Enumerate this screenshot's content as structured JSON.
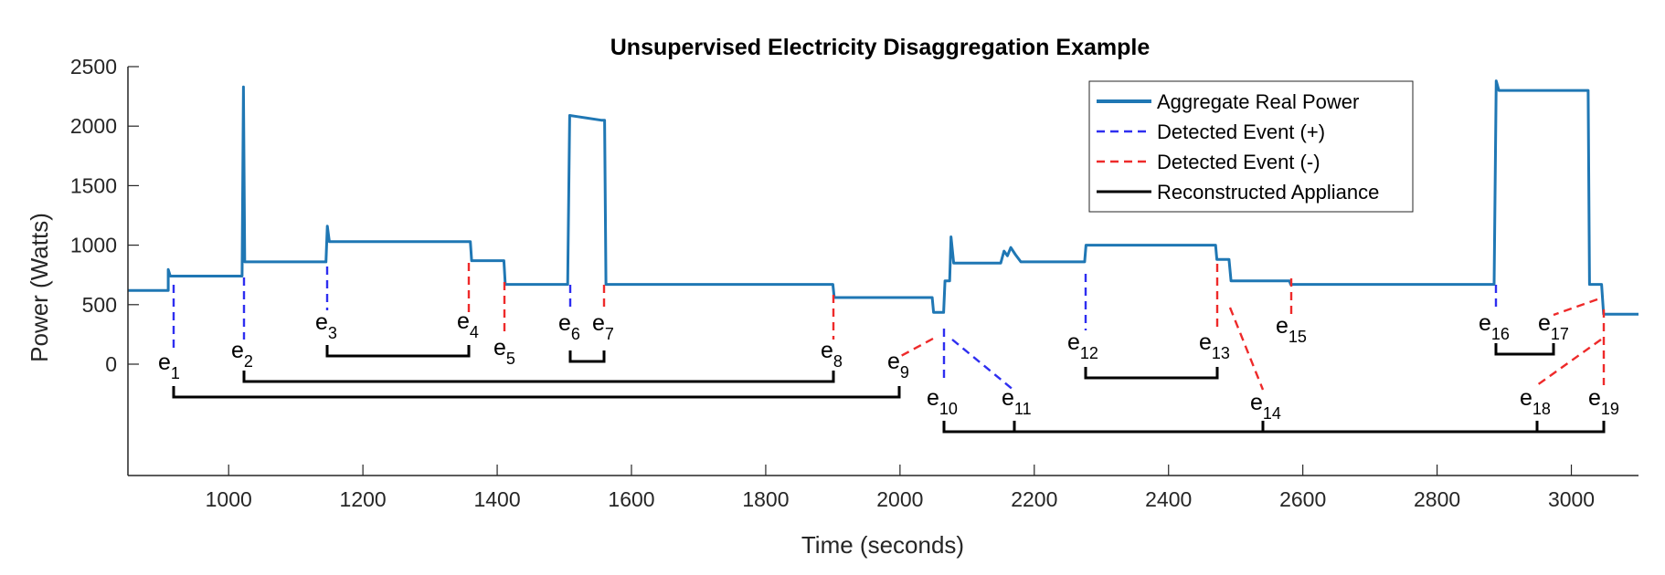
{
  "chart_data": {
    "type": "line",
    "title": "Unsupervised Electricity Disaggregation Example",
    "xlabel": "Time (seconds)",
    "ylabel": "Power (Watts)",
    "xlim": [
      850,
      3100
    ],
    "ylim": [
      -1000,
      2500
    ],
    "xticks": [
      1000,
      1200,
      1400,
      1600,
      1800,
      2000,
      2200,
      2400,
      2600,
      2800,
      3000
    ],
    "yticks": [
      0,
      500,
      1000,
      1500,
      2000,
      2500
    ],
    "grid": false,
    "legend_position": "top-right",
    "colors": {
      "aggregate": "#1f77b4",
      "event_plus": "#2e2ef0",
      "event_minus": "#ee2a2a",
      "appliance": "#000000",
      "axis": "#262626"
    },
    "legend": [
      {
        "label": "Aggregate Real Power",
        "style": "aggregate"
      },
      {
        "label": "Detected Event (+)",
        "style": "event_plus"
      },
      {
        "label": "Detected Event (-)",
        "style": "event_minus"
      },
      {
        "label": "Reconstructed Appliance",
        "style": "appliance"
      }
    ],
    "aggregate_power": {
      "name": "Aggregate Real Power",
      "points": [
        [
          850,
          620
        ],
        [
          910,
          620
        ],
        [
          910,
          795
        ],
        [
          913,
          740
        ],
        [
          1020,
          740
        ],
        [
          1022,
          2330
        ],
        [
          1024,
          860
        ],
        [
          1145,
          860
        ],
        [
          1147,
          1160
        ],
        [
          1150,
          1030
        ],
        [
          1360,
          1030
        ],
        [
          1362,
          870
        ],
        [
          1410,
          870
        ],
        [
          1412,
          670
        ],
        [
          1505,
          670
        ],
        [
          1508,
          2090
        ],
        [
          1520,
          2080
        ],
        [
          1555,
          2050
        ],
        [
          1560,
          2050
        ],
        [
          1562,
          670
        ],
        [
          1900,
          670
        ],
        [
          1902,
          560
        ],
        [
          2048,
          560
        ],
        [
          2050,
          435
        ],
        [
          2065,
          435
        ],
        [
          2067,
          700
        ],
        [
          2074,
          700
        ],
        [
          2076,
          1070
        ],
        [
          2080,
          850
        ],
        [
          2150,
          850
        ],
        [
          2155,
          950
        ],
        [
          2160,
          910
        ],
        [
          2165,
          980
        ],
        [
          2172,
          920
        ],
        [
          2180,
          860
        ],
        [
          2275,
          860
        ],
        [
          2277,
          1000
        ],
        [
          2470,
          1000
        ],
        [
          2472,
          880
        ],
        [
          2490,
          880
        ],
        [
          2493,
          700
        ],
        [
          2580,
          700
        ],
        [
          2582,
          670
        ],
        [
          2885,
          670
        ],
        [
          2888,
          2380
        ],
        [
          2892,
          2300
        ],
        [
          3025,
          2300
        ],
        [
          3027,
          670
        ],
        [
          3045,
          670
        ],
        [
          3048,
          420
        ],
        [
          3100,
          420
        ]
      ]
    },
    "events": [
      {
        "sym": "e",
        "sub": "1",
        "time": 910,
        "sign": "+"
      },
      {
        "sym": "e",
        "sub": "2",
        "time": 1022,
        "sign": "+"
      },
      {
        "sym": "e",
        "sub": "3",
        "time": 1147,
        "sign": "+"
      },
      {
        "sym": "e",
        "sub": "4",
        "time": 1360,
        "sign": "-"
      },
      {
        "sym": "e",
        "sub": "5",
        "time": 1412,
        "sign": "-"
      },
      {
        "sym": "e",
        "sub": "6",
        "time": 1507,
        "sign": "+"
      },
      {
        "sym": "e",
        "sub": "7",
        "time": 1561,
        "sign": "-"
      },
      {
        "sym": "e",
        "sub": "8",
        "time": 1900,
        "sign": "-"
      },
      {
        "sym": "e",
        "sub": "9",
        "time": 2050,
        "sign": "-"
      },
      {
        "sym": "e",
        "sub": "10",
        "time": 2067,
        "sign": "+"
      },
      {
        "sym": "e",
        "sub": "11",
        "time": 2076,
        "sign": "+"
      },
      {
        "sym": "e",
        "sub": "12",
        "time": 2277,
        "sign": "+"
      },
      {
        "sym": "e",
        "sub": "13",
        "time": 2472,
        "sign": "-"
      },
      {
        "sym": "e",
        "sub": "14",
        "time": 2493,
        "sign": "-"
      },
      {
        "sym": "e",
        "sub": "15",
        "time": 2582,
        "sign": "-"
      },
      {
        "sym": "e",
        "sub": "16",
        "time": 2888,
        "sign": "+"
      },
      {
        "sym": "e",
        "sub": "17",
        "time": 3026,
        "sign": "-"
      },
      {
        "sym": "e",
        "sub": "18",
        "time": 3046,
        "sign": "-"
      },
      {
        "sym": "e",
        "sub": "19",
        "time": 3049,
        "sign": "-"
      }
    ],
    "reconstructed_appliances": [
      {
        "start": "e1",
        "end": "e9"
      },
      {
        "start": "e2",
        "end": "e8"
      },
      {
        "start": "e3",
        "end": "e4"
      },
      {
        "start": "e6",
        "end": "e7"
      },
      {
        "start": "e10",
        "end": "e19"
      },
      {
        "start": "e11",
        "end": "e14"
      },
      {
        "start": "e12",
        "end": "e13"
      },
      {
        "start": "e16",
        "end": "e17"
      },
      {
        "start": "e18",
        "end": "e19"
      }
    ]
  }
}
